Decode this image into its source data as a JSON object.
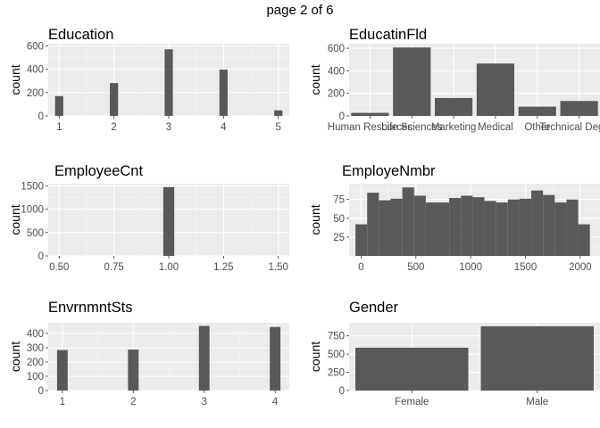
{
  "page_title": "page 2 of 6",
  "colors": {
    "panel": "#ebebeb",
    "grid_major": "#ffffff",
    "grid_minor": "#f5f5f5",
    "bar": "#595959",
    "tick_text": "#4d4d4d"
  },
  "chart_data": [
    {
      "type": "bar",
      "title": "Education",
      "ylabel": "count",
      "xlabel": "",
      "x_ticks": [
        "1",
        "2",
        "3",
        "4",
        "5"
      ],
      "y_ticks": [
        "0",
        "200",
        "400",
        "600"
      ],
      "xlim": [
        0.8,
        5.2
      ],
      "ylim": [
        0,
        620
      ],
      "bars": [
        {
          "x": 1,
          "value": 170
        },
        {
          "x": 2,
          "value": 282
        },
        {
          "x": 3,
          "value": 572
        },
        {
          "x": 4,
          "value": 398
        },
        {
          "x": 5,
          "value": 48
        }
      ]
    },
    {
      "type": "bar",
      "title": "EducatinFld",
      "ylabel": "count",
      "xlabel": "",
      "categories": [
        "Human Resources",
        "Life Sciences",
        "Marketing",
        "Medical",
        "Other",
        "Technical Degree"
      ],
      "values": [
        27,
        606,
        159,
        464,
        82,
        132
      ],
      "y_ticks": [
        "0",
        "200",
        "400",
        "600"
      ],
      "ylim": [
        0,
        640
      ]
    },
    {
      "type": "bar",
      "title": "EmployeeCnt",
      "ylabel": "count",
      "xlabel": "",
      "x_ticks": [
        "0.50",
        "0.75",
        "1.00",
        "1.25",
        "1.50"
      ],
      "y_ticks": [
        "0",
        "500",
        "1000",
        "1500"
      ],
      "xlim": [
        0.45,
        1.55
      ],
      "ylim": [
        0,
        1544
      ],
      "bars": [
        {
          "x": 1.0,
          "value": 1470
        }
      ]
    },
    {
      "type": "bar",
      "title": "EmployeNmbr",
      "ylabel": "count",
      "xlabel": "",
      "x_ticks": [
        "0",
        "500",
        "1000",
        "1500",
        "2000"
      ],
      "y_ticks": [
        "25",
        "50",
        "75"
      ],
      "xlim": [
        -110,
        2180
      ],
      "ylim": [
        0,
        96
      ],
      "bin_start": -52,
      "bin_width": 107,
      "values": [
        42,
        84,
        74,
        76,
        91,
        80,
        71,
        71,
        77,
        80,
        78,
        73,
        71,
        75,
        76,
        87,
        81,
        71,
        75,
        42
      ]
    },
    {
      "type": "bar",
      "title": "EnvrnmntSts",
      "ylabel": "count",
      "xlabel": "",
      "x_ticks": [
        "1",
        "2",
        "3",
        "4"
      ],
      "y_ticks": [
        "0",
        "100",
        "200",
        "300",
        "400"
      ],
      "xlim": [
        0.8,
        4.2
      ],
      "ylim": [
        0,
        475
      ],
      "bars": [
        {
          "x": 1,
          "value": 284
        },
        {
          "x": 2,
          "value": 287
        },
        {
          "x": 3,
          "value": 453
        },
        {
          "x": 4,
          "value": 446
        }
      ]
    },
    {
      "type": "bar",
      "title": "Gender",
      "ylabel": "count",
      "xlabel": "",
      "categories": [
        "Female",
        "Male"
      ],
      "values": [
        588,
        882
      ],
      "y_ticks": [
        "0",
        "250",
        "500",
        "750"
      ],
      "ylim": [
        0,
        930
      ]
    }
  ]
}
